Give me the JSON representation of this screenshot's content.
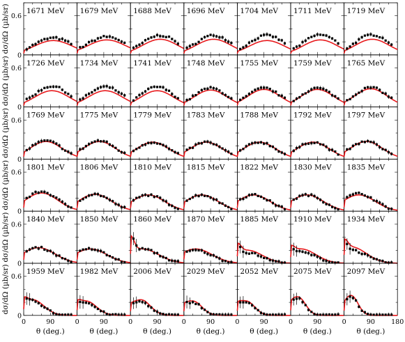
{
  "chart_data": {
    "type": "scatter",
    "layout": {
      "rows": 6,
      "cols": 7
    },
    "xlabel": "θ (deg.)",
    "ylabel": "dσ/dΩ (µb/sr)",
    "xlim": [
      0,
      180
    ],
    "ylim": [
      0,
      0.8
    ],
    "xticks": [
      0,
      90,
      180
    ],
    "yticks": [
      0,
      0.6
    ],
    "panels": [
      {
        "label": "1671 MeV",
        "amp": 0.22,
        "peak": 100,
        "width": 65,
        "fwd": 0,
        "fwdw": 20,
        "dev": 0.04
      },
      {
        "label": "1679 MeV",
        "amp": 0.23,
        "peak": 100,
        "width": 65,
        "fwd": 0,
        "fwdw": 20,
        "dev": 0.05
      },
      {
        "label": "1688 MeV",
        "amp": 0.24,
        "peak": 100,
        "width": 60,
        "fwd": 0,
        "fwdw": 20,
        "dev": 0.06
      },
      {
        "label": "1696 MeV",
        "amp": 0.24,
        "peak": 100,
        "width": 60,
        "fwd": 0,
        "fwdw": 20,
        "dev": 0.06
      },
      {
        "label": "1704 MeV",
        "amp": 0.22,
        "peak": 100,
        "width": 60,
        "fwd": 0,
        "fwdw": 20,
        "dev": 0.08
      },
      {
        "label": "1711 MeV",
        "amp": 0.23,
        "peak": 100,
        "width": 58,
        "fwd": 0,
        "fwdw": 20,
        "dev": 0.08
      },
      {
        "label": "1719 MeV",
        "amp": 0.24,
        "peak": 95,
        "width": 58,
        "fwd": 0,
        "fwdw": 20,
        "dev": 0.07
      },
      {
        "label": "1726 MeV",
        "amp": 0.25,
        "peak": 95,
        "width": 58,
        "fwd": 0,
        "fwdw": 20,
        "dev": 0.07
      },
      {
        "label": "1734 MeV",
        "amp": 0.25,
        "peak": 95,
        "width": 58,
        "fwd": 0,
        "fwdw": 20,
        "dev": 0.06
      },
      {
        "label": "1741 MeV",
        "amp": 0.25,
        "peak": 90,
        "width": 55,
        "fwd": 0,
        "fwdw": 20,
        "dev": 0.06
      },
      {
        "label": "1748 MeV",
        "amp": 0.26,
        "peak": 90,
        "width": 55,
        "fwd": 0,
        "fwdw": 20,
        "dev": 0.03
      },
      {
        "label": "1755 MeV",
        "amp": 0.27,
        "peak": 90,
        "width": 55,
        "fwd": 0,
        "fwdw": 20,
        "dev": 0.02
      },
      {
        "label": "1759 MeV",
        "amp": 0.27,
        "peak": 90,
        "width": 55,
        "fwd": 0,
        "fwdw": 20,
        "dev": 0.02
      },
      {
        "label": "1765 MeV",
        "amp": 0.28,
        "peak": 90,
        "width": 55,
        "fwd": 0,
        "fwdw": 20,
        "dev": 0.02
      },
      {
        "label": "1769 MeV",
        "amp": 0.27,
        "peak": 75,
        "width": 55,
        "fwd": 0,
        "fwdw": 20,
        "dev": 0.01
      },
      {
        "label": "1775 MeV",
        "amp": 0.27,
        "peak": 75,
        "width": 55,
        "fwd": 0,
        "fwdw": 20,
        "dev": 0.01
      },
      {
        "label": "1779 MeV",
        "amp": 0.26,
        "peak": 75,
        "width": 55,
        "fwd": 0,
        "fwdw": 20,
        "dev": 0.0
      },
      {
        "label": "1783 MeV",
        "amp": 0.26,
        "peak": 75,
        "width": 55,
        "fwd": 0,
        "fwdw": 20,
        "dev": 0.0
      },
      {
        "label": "1788 MeV",
        "amp": 0.26,
        "peak": 75,
        "width": 55,
        "fwd": 0,
        "fwdw": 20,
        "dev": 0.0
      },
      {
        "label": "1792 MeV",
        "amp": 0.26,
        "peak": 75,
        "width": 55,
        "fwd": 0,
        "fwdw": 20,
        "dev": 0.0
      },
      {
        "label": "1797 MeV",
        "amp": 0.27,
        "peak": 75,
        "width": 55,
        "fwd": 0,
        "fwdw": 20,
        "dev": 0.0
      },
      {
        "label": "1801 MeV",
        "amp": 0.28,
        "peak": 60,
        "width": 55,
        "fwd": 0,
        "fwdw": 20,
        "dev": 0.02
      },
      {
        "label": "1806 MeV",
        "amp": 0.26,
        "peak": 60,
        "width": 55,
        "fwd": 0,
        "fwdw": 20,
        "dev": 0.0
      },
      {
        "label": "1810 MeV",
        "amp": 0.25,
        "peak": 60,
        "width": 55,
        "fwd": 0,
        "fwdw": 20,
        "dev": 0.0
      },
      {
        "label": "1815 MeV",
        "amp": 0.25,
        "peak": 60,
        "width": 55,
        "fwd": 0,
        "fwdw": 20,
        "dev": 0.0
      },
      {
        "label": "1822 MeV",
        "amp": 0.25,
        "peak": 55,
        "width": 55,
        "fwd": 0,
        "fwdw": 20,
        "dev": 0.0
      },
      {
        "label": "1830 MeV",
        "amp": 0.25,
        "peak": 55,
        "width": 55,
        "fwd": 0,
        "fwdw": 20,
        "dev": 0.0
      },
      {
        "label": "1835 MeV",
        "amp": 0.25,
        "peak": 50,
        "width": 55,
        "fwd": 0,
        "fwdw": 20,
        "dev": 0.02
      },
      {
        "label": "1840 MeV",
        "amp": 0.24,
        "peak": 50,
        "width": 55,
        "fwd": 0,
        "fwdw": 20,
        "dev": 0.0
      },
      {
        "label": "1850 MeV",
        "amp": 0.22,
        "peak": 45,
        "width": 55,
        "fwd": 0,
        "fwdw": 20,
        "dev": 0.0
      },
      {
        "label": "1860 MeV",
        "amp": 0.22,
        "peak": 40,
        "width": 55,
        "fwd": 0.25,
        "fwdw": 12,
        "dev": 0.0
      },
      {
        "label": "1870 MeV",
        "amp": 0.22,
        "peak": 40,
        "width": 55,
        "fwd": 0,
        "fwdw": 20,
        "dev": -0.02
      },
      {
        "label": "1885 MeV",
        "amp": 0.2,
        "peak": 35,
        "width": 50,
        "fwd": 0.15,
        "fwdw": 12,
        "dev": -0.04
      },
      {
        "label": "1910 MeV",
        "amp": 0.22,
        "peak": 35,
        "width": 50,
        "fwd": 0.1,
        "fwdw": 12,
        "dev": -0.05
      },
      {
        "label": "1934 MeV",
        "amp": 0.25,
        "peak": 25,
        "width": 50,
        "fwd": 0.15,
        "fwdw": 12,
        "dev": -0.05
      },
      {
        "label": "1959 MeV",
        "amp": 0.24,
        "peak": 30,
        "width": 38,
        "fwd": 0.1,
        "fwdw": 12,
        "dev": -0.02
      },
      {
        "label": "1982 MeV",
        "amp": 0.22,
        "peak": 30,
        "width": 35,
        "fwd": 0.08,
        "fwdw": 12,
        "dev": -0.03
      },
      {
        "label": "2006 MeV",
        "amp": 0.24,
        "peak": 35,
        "width": 32,
        "fwd": 0.05,
        "fwdw": 12,
        "dev": -0.03
      },
      {
        "label": "2029 MeV",
        "amp": 0.22,
        "peak": 30,
        "width": 30,
        "fwd": 0.05,
        "fwdw": 12,
        "dev": -0.02
      },
      {
        "label": "2052 MeV",
        "amp": 0.22,
        "peak": 30,
        "width": 28,
        "fwd": 0.08,
        "fwdw": 12,
        "dev": -0.03
      },
      {
        "label": "2075 MeV",
        "amp": 0.28,
        "peak": 25,
        "width": 25,
        "fwd": 0.05,
        "fwdw": 12,
        "dev": -0.02
      },
      {
        "label": "2097 MeV",
        "amp": 0.3,
        "peak": 25,
        "width": 22,
        "fwd": 0.05,
        "fwdw": 12,
        "dev": -0.02
      }
    ],
    "angles": [
      10,
      20,
      30,
      40,
      50,
      60,
      70,
      80,
      90,
      100,
      110,
      120,
      130,
      140,
      150,
      160
    ]
  }
}
